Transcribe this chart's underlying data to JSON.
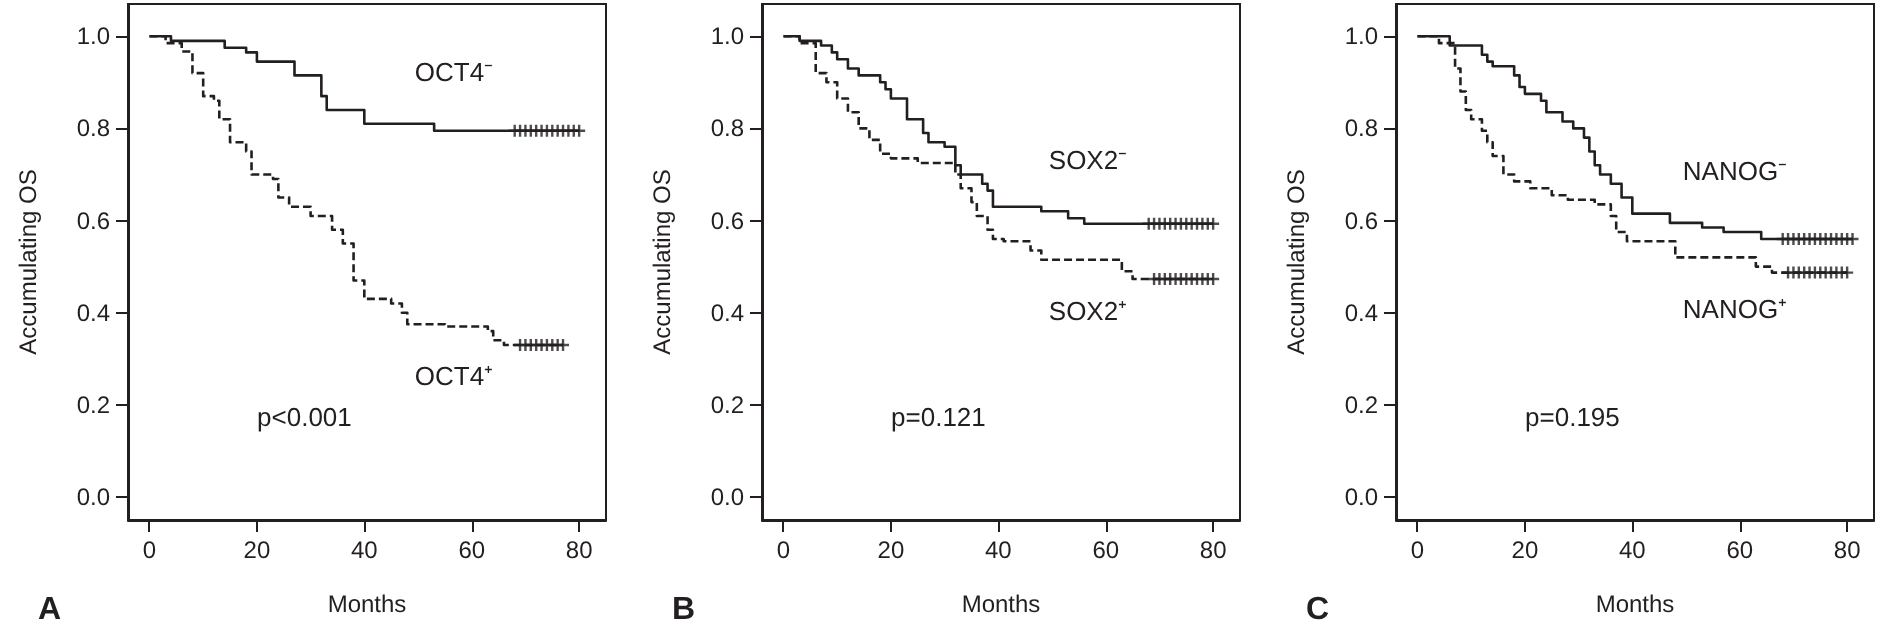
{
  "chart_data": [
    {
      "type": "step",
      "title": "A",
      "xlabel": "Months",
      "ylabel": "Accumulating OS",
      "xlim": [
        -4,
        85
      ],
      "ylim": [
        -0.05,
        1.07
      ],
      "xticks": [
        0,
        20,
        40,
        60,
        80
      ],
      "yticks": [
        {
          "value": 0,
          "label": "0.0"
        },
        {
          "value": 0.2,
          "label": "0.2"
        },
        {
          "value": 0.4,
          "label": "0.4"
        },
        {
          "value": 0.6,
          "label": "0.6"
        },
        {
          "value": 0.8,
          "label": "0.8"
        },
        {
          "value": 1,
          "label": "1.0"
        }
      ],
      "grid": false,
      "legend": false,
      "marker": "none",
      "annotations": [
        "p<0.001"
      ],
      "series": [
        {
          "name": "OCT4⁻",
          "color": "#231f20",
          "line_style": "solid",
          "x": [
            0,
            4,
            14,
            18,
            20,
            27,
            32,
            33,
            40,
            53,
            80
          ],
          "values": [
            1,
            0.99,
            0.975,
            0.965,
            0.945,
            0.915,
            0.87,
            0.84,
            0.81,
            0.795,
            0.795
          ]
        },
        {
          "name": "OCT4⁺",
          "color": "#231f20",
          "line_style": "dashed",
          "x": [
            0,
            3,
            6,
            8,
            10,
            12,
            13,
            15,
            18,
            19,
            23,
            24,
            26,
            30,
            34,
            36,
            38,
            40,
            45,
            47,
            48,
            55,
            63,
            64,
            66,
            77
          ],
          "values": [
            1,
            0.985,
            0.967,
            0.92,
            0.87,
            0.86,
            0.82,
            0.77,
            0.75,
            0.7,
            0.69,
            0.65,
            0.63,
            0.61,
            0.58,
            0.55,
            0.47,
            0.43,
            0.42,
            0.4,
            0.375,
            0.37,
            0.36,
            0.34,
            0.33,
            0.33
          ]
        },
        {
          "type": "scatter",
          "marker": "cross",
          "color": "#231f20",
          "x": [
            68,
            69,
            70,
            71,
            72,
            73,
            74,
            75,
            76,
            77,
            78,
            79,
            80
          ],
          "values": [
            0.795,
            0.795,
            0.795,
            0.795,
            0.795,
            0.795,
            0.795,
            0.795,
            0.795,
            0.795,
            0.795,
            0.795,
            0.795
          ]
        },
        {
          "type": "scatter",
          "marker": "cross",
          "color": "#231f20",
          "x": [
            69,
            70,
            71,
            72,
            73,
            74,
            75,
            76,
            77
          ],
          "values": [
            0.33,
            0.33,
            0.33,
            0.33,
            0.33,
            0.33,
            0.33,
            0.33,
            0.33
          ]
        }
      ]
    },
    {
      "type": "step",
      "title": "B",
      "xlabel": "Months",
      "ylabel": "Accumulating OS",
      "xlim": [
        -4,
        85
      ],
      "ylim": [
        -0.05,
        1.07
      ],
      "xticks": [
        0,
        20,
        40,
        60,
        80
      ],
      "yticks": [
        {
          "value": 0,
          "label": "0.0"
        },
        {
          "value": 0.2,
          "label": "0.2"
        },
        {
          "value": 0.4,
          "label": "0.4"
        },
        {
          "value": 0.6,
          "label": "0.6"
        },
        {
          "value": 0.8,
          "label": "0.8"
        },
        {
          "value": 1,
          "label": "1.0"
        }
      ],
      "grid": false,
      "legend": false,
      "marker": "none",
      "annotations": [
        "p=0.121"
      ],
      "series": [
        {
          "name": "SOX2⁻",
          "color": "#231f20",
          "line_style": "solid",
          "x": [
            0,
            3,
            7,
            9,
            10,
            12,
            14,
            18,
            19,
            20,
            23,
            26,
            27,
            30,
            32,
            33,
            37,
            38,
            39,
            48,
            53,
            56,
            80
          ],
          "values": [
            1,
            0.99,
            0.98,
            0.965,
            0.95,
            0.93,
            0.915,
            0.9,
            0.885,
            0.865,
            0.82,
            0.79,
            0.77,
            0.76,
            0.72,
            0.7,
            0.68,
            0.665,
            0.63,
            0.62,
            0.605,
            0.593,
            0.593
          ]
        },
        {
          "name": "SOX2⁺",
          "color": "#231f20",
          "line_style": "dashed",
          "x": [
            0,
            3,
            6,
            8,
            10,
            12,
            14,
            16,
            18,
            20,
            25,
            32,
            33,
            35,
            36,
            38,
            39,
            41,
            46,
            48,
            63,
            65,
            80
          ],
          "values": [
            1,
            0.985,
            0.92,
            0.9,
            0.865,
            0.835,
            0.8,
            0.775,
            0.745,
            0.735,
            0.725,
            0.7,
            0.67,
            0.64,
            0.61,
            0.58,
            0.56,
            0.555,
            0.535,
            0.515,
            0.49,
            0.473,
            0.473
          ]
        },
        {
          "type": "scatter",
          "marker": "cross",
          "color": "#231f20",
          "x": [
            68,
            69,
            70,
            71,
            72,
            73,
            74,
            75,
            76,
            77,
            78,
            79,
            80
          ],
          "values": [
            0.593,
            0.593,
            0.593,
            0.593,
            0.593,
            0.593,
            0.593,
            0.593,
            0.593,
            0.593,
            0.593,
            0.593,
            0.593
          ]
        },
        {
          "type": "scatter",
          "marker": "cross",
          "color": "#231f20",
          "x": [
            69,
            70,
            71,
            72,
            73,
            74,
            75,
            76,
            77,
            78,
            79,
            80
          ],
          "values": [
            0.473,
            0.473,
            0.473,
            0.473,
            0.473,
            0.473,
            0.473,
            0.473,
            0.473,
            0.473,
            0.473,
            0.473
          ]
        }
      ]
    },
    {
      "type": "step",
      "title": "C",
      "xlabel": "Months",
      "ylabel": "Accumulating OS",
      "xlim": [
        -4,
        85
      ],
      "ylim": [
        -0.05,
        1.07
      ],
      "xticks": [
        0,
        20,
        40,
        60,
        80
      ],
      "yticks": [
        {
          "value": 0,
          "label": "0.0"
        },
        {
          "value": 0.2,
          "label": "0.2"
        },
        {
          "value": 0.4,
          "label": "0.4"
        },
        {
          "value": 0.6,
          "label": "0.6"
        },
        {
          "value": 0.8,
          "label": "0.8"
        },
        {
          "value": 1,
          "label": "1.0"
        }
      ],
      "grid": false,
      "legend": false,
      "marker": "none",
      "annotations": [
        "p=0.195"
      ],
      "series": [
        {
          "name": "NANOG⁻",
          "color": "#231f20",
          "line_style": "solid",
          "x": [
            0,
            6,
            12,
            13,
            14,
            18,
            19,
            20,
            23,
            24,
            27,
            29,
            31,
            32,
            33,
            34,
            36,
            38,
            40,
            47,
            53,
            57,
            64,
            81
          ],
          "values": [
            1,
            0.98,
            0.96,
            0.945,
            0.935,
            0.915,
            0.89,
            0.875,
            0.86,
            0.835,
            0.815,
            0.8,
            0.78,
            0.75,
            0.72,
            0.7,
            0.68,
            0.65,
            0.615,
            0.595,
            0.585,
            0.575,
            0.56,
            0.56
          ]
        },
        {
          "name": "NANOG⁺",
          "color": "#231f20",
          "line_style": "dashed",
          "x": [
            0,
            4,
            7,
            8,
            9,
            10,
            12,
            13,
            14,
            16,
            18,
            21,
            25,
            28,
            33,
            36,
            37,
            39,
            48,
            63,
            66,
            80
          ],
          "values": [
            1,
            0.985,
            0.93,
            0.88,
            0.84,
            0.82,
            0.795,
            0.77,
            0.74,
            0.7,
            0.685,
            0.67,
            0.655,
            0.645,
            0.635,
            0.61,
            0.575,
            0.555,
            0.52,
            0.5,
            0.487,
            0.487
          ]
        },
        {
          "type": "scatter",
          "marker": "cross",
          "color": "#231f20",
          "x": [
            68,
            69,
            70,
            71,
            72,
            73,
            74,
            75,
            76,
            77,
            78,
            79,
            80,
            81
          ],
          "values": [
            0.56,
            0.56,
            0.56,
            0.56,
            0.56,
            0.56,
            0.56,
            0.56,
            0.56,
            0.56,
            0.56,
            0.56,
            0.56,
            0.56
          ]
        },
        {
          "type": "scatter",
          "marker": "cross",
          "color": "#231f20",
          "x": [
            69,
            70,
            71,
            72,
            73,
            74,
            75,
            76,
            77,
            78,
            79,
            80
          ],
          "values": [
            0.487,
            0.487,
            0.487,
            0.487,
            0.487,
            0.487,
            0.487,
            0.487,
            0.487,
            0.487,
            0.487,
            0.487
          ]
        }
      ]
    }
  ]
}
